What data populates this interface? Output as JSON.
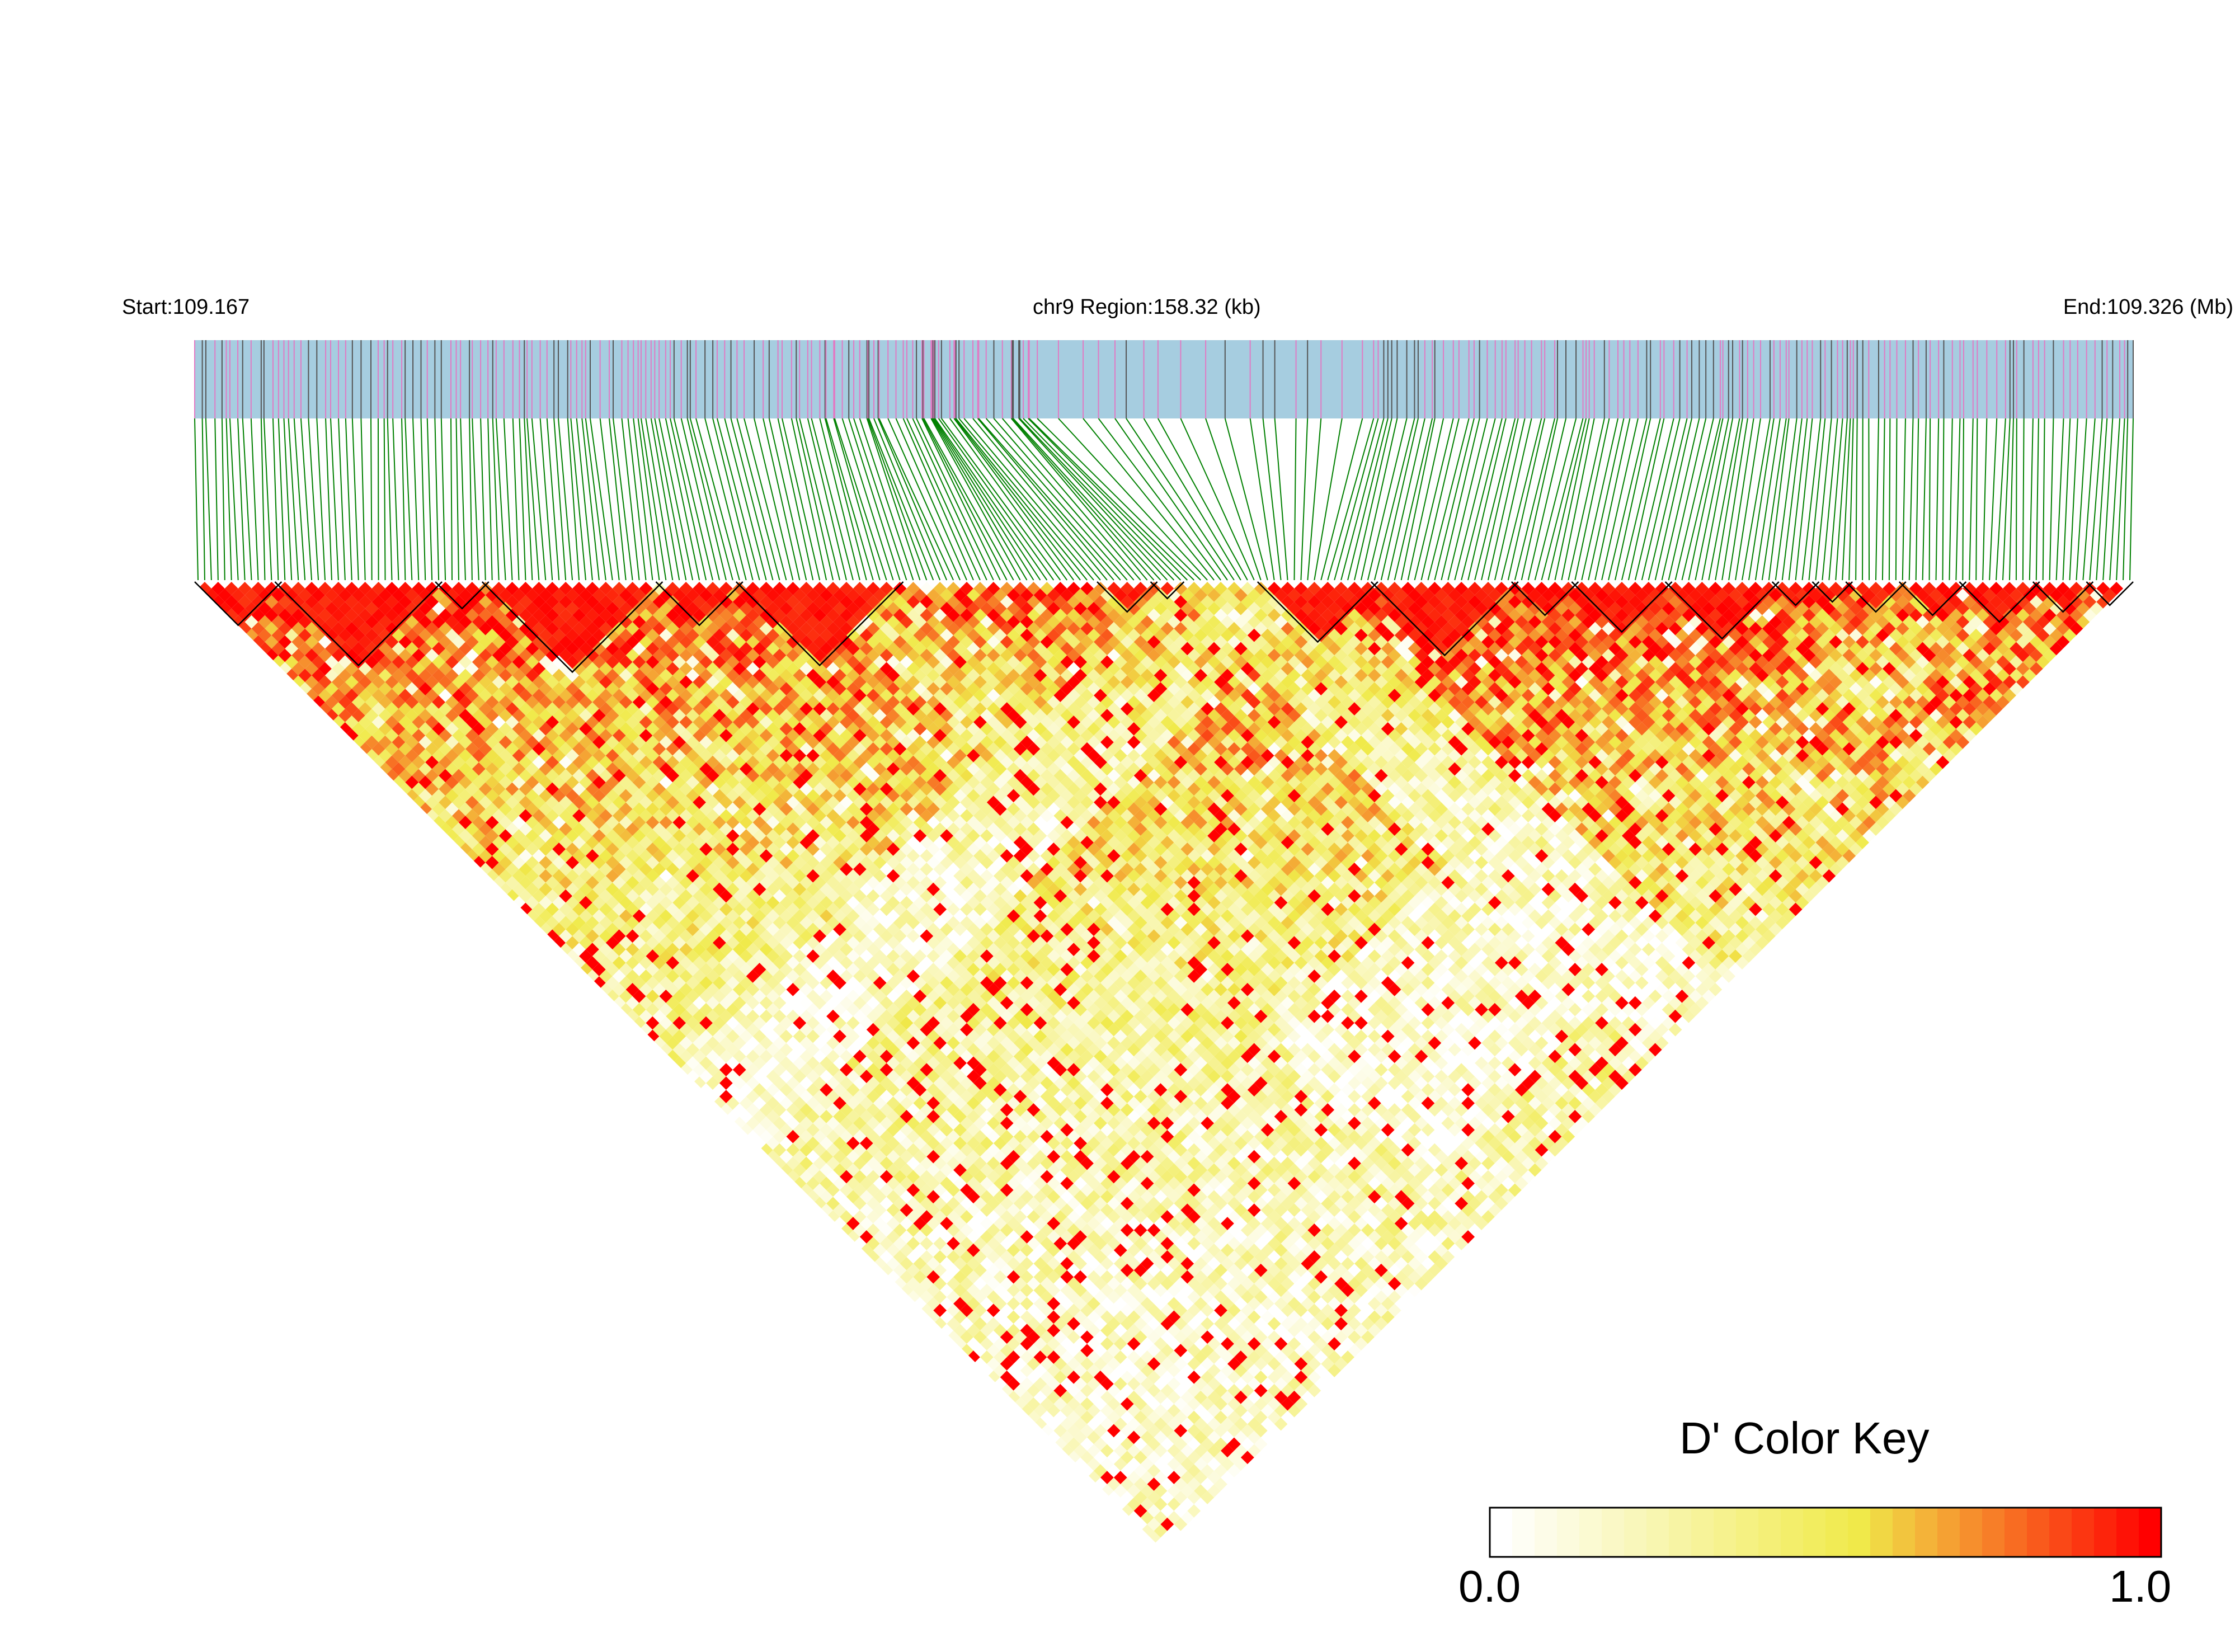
{
  "header": {
    "start": "Start:109.167",
    "region": "chr9 Region:158.32 (kb)",
    "end": "End:109.326 (Mb)"
  },
  "color_key": {
    "title": "D' Color Key",
    "min_label": "0.0",
    "max_label": "1.0",
    "colors": [
      "#ffffff",
      "#f0ea4a",
      "#ff0000"
    ]
  },
  "colors": {
    "track_background": "#a6cde0",
    "common_snp_mark": "#e07bc4",
    "other_snp_mark": "#555555",
    "connector_line": "#008000",
    "block_outline": "#000000"
  },
  "chart_data": {
    "type": "heatmap",
    "title": "",
    "xlabel": "",
    "ylabel": "",
    "measure": "D'",
    "value_range": [
      0,
      1
    ],
    "chromosome": "chr9",
    "region_start_mb": 109.167,
    "region_end_mb": 109.326,
    "region_length_kb": 158.32,
    "n_snps": 290,
    "ld_matrix_rows": [
      {
        "snp_range": [
          1,
          30
        ],
        "approx_dprime": 0.95
      },
      {
        "snp_range": [
          30,
          95
        ],
        "approx_dprime": 0.9
      },
      {
        "snp_range": [
          95,
          145
        ],
        "approx_dprime": 0.85
      },
      {
        "snp_range": [
          170,
          230
        ],
        "approx_dprime": 0.95
      },
      {
        "snp_range": [
          230,
          275
        ],
        "approx_dprime": 0.85
      },
      {
        "snp_range": [
          275,
          290
        ],
        "approx_dprime": 0.9
      }
    ],
    "haplotype_blocks_snp_index": [
      [
        1,
        13
      ],
      [
        13,
        37
      ],
      [
        37,
        44
      ],
      [
        44,
        70
      ],
      [
        70,
        82
      ],
      [
        82,
        106
      ],
      [
        136,
        144
      ],
      [
        144,
        148
      ],
      [
        160,
        177
      ],
      [
        177,
        198
      ],
      [
        198,
        207
      ],
      [
        207,
        221
      ],
      [
        221,
        237
      ],
      [
        237,
        243
      ],
      [
        243,
        248
      ],
      [
        248,
        256
      ],
      [
        256,
        265
      ],
      [
        265,
        276
      ],
      [
        276,
        284
      ],
      [
        284,
        290
      ]
    ]
  }
}
